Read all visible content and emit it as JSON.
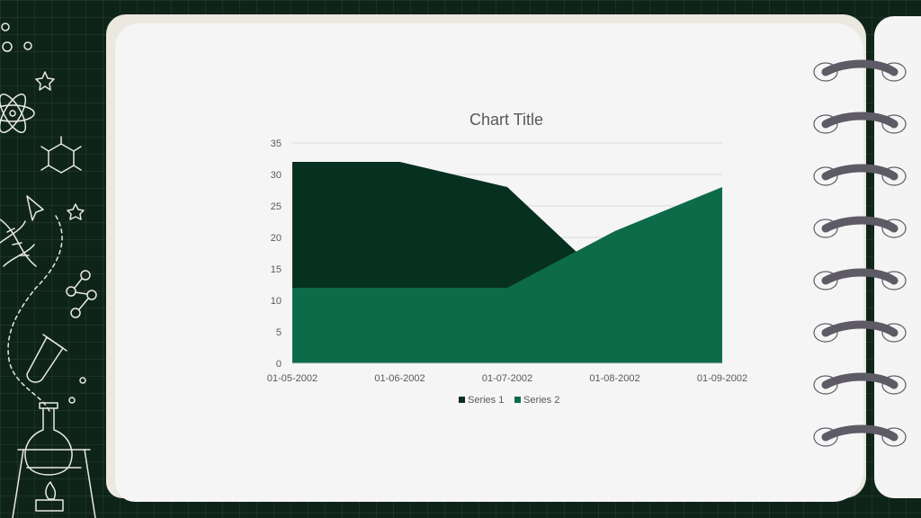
{
  "colors": {
    "background": "#0f2419",
    "paper": "#f5f5f5",
    "series1": "#06301f",
    "series2": "#0e6b49",
    "spiral": "#5e5a66"
  },
  "chart_data": {
    "type": "area",
    "title": "Chart Title",
    "xlabel": "",
    "ylabel": "",
    "categories": [
      "01-05-2002",
      "01-06-2002",
      "01-07-2002",
      "01-08-2002",
      "01-09-2002"
    ],
    "series": [
      {
        "name": "Series 1",
        "values": [
          32,
          32,
          28,
          12,
          12
        ]
      },
      {
        "name": "Series 2",
        "values": [
          12,
          12,
          12,
          21,
          28
        ]
      }
    ],
    "ylim": [
      0,
      35
    ],
    "yticks": [
      0,
      5,
      10,
      15,
      20,
      25,
      30,
      35
    ],
    "grid": true,
    "legend": "bottom"
  }
}
